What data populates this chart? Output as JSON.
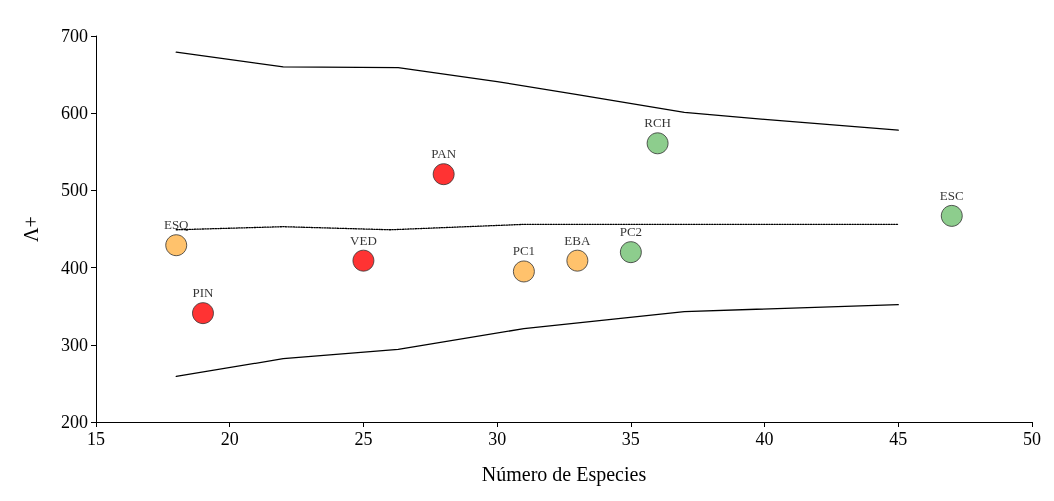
{
  "chart_data": {
    "type": "scatter",
    "xlabel": "Número de Especies",
    "ylabel": "Λ+",
    "xlim": [
      15,
      50
    ],
    "xticks": [
      15,
      20,
      25,
      30,
      35,
      40,
      45,
      50
    ],
    "ylim": [
      200,
      700
    ],
    "yticks": [
      200,
      300,
      400,
      500,
      600,
      700
    ],
    "grid": false,
    "series": [
      {
        "type": "line",
        "color": "#000000",
        "line_style": "solid",
        "x": [
          18,
          22,
          26.3,
          30,
          33,
          37,
          40,
          45
        ],
        "values": [
          679,
          660,
          659,
          641,
          624,
          601,
          592,
          578
        ]
      },
      {
        "type": "line",
        "color": "#000000",
        "line_style": "dotted",
        "x": [
          18,
          22,
          26,
          31,
          45
        ],
        "values": [
          449,
          453,
          449,
          456,
          456
        ]
      },
      {
        "type": "line",
        "color": "#000000",
        "line_style": "solid",
        "x": [
          18,
          22,
          26.3,
          31,
          37,
          45
        ],
        "values": [
          259,
          282,
          294,
          321,
          343,
          352
        ]
      },
      {
        "marker": "circle",
        "x": [
          18,
          19,
          25,
          28,
          31,
          33,
          35,
          36,
          47
        ],
        "values": [
          429,
          341,
          409,
          521,
          395,
          409,
          420,
          561,
          467
        ],
        "colors": [
          "#ffb347",
          "#ff0000",
          "#ff0000",
          "#ff0000",
          "#ffb347",
          "#ffb347",
          "#70c070",
          "#70c070",
          "#70c070"
        ]
      }
    ],
    "annotations": [
      {
        "text": "ESQ",
        "x": 18,
        "y": 429
      },
      {
        "text": "PIN",
        "x": 19,
        "y": 341
      },
      {
        "text": "VED",
        "x": 25,
        "y": 409
      },
      {
        "text": "PAN",
        "x": 28,
        "y": 521
      },
      {
        "text": "PC1",
        "x": 31,
        "y": 395
      },
      {
        "text": "EBA",
        "x": 33,
        "y": 409
      },
      {
        "text": "PC2",
        "x": 35,
        "y": 420
      },
      {
        "text": "RCH",
        "x": 36,
        "y": 561
      },
      {
        "text": "ESC",
        "x": 47,
        "y": 467
      }
    ]
  }
}
